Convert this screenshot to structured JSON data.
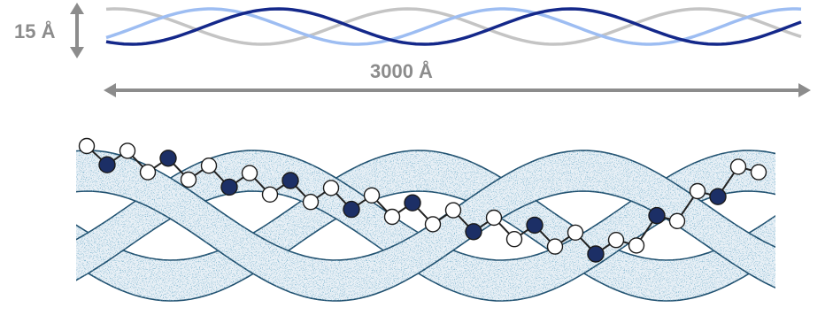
{
  "dimensions": {
    "diameter_label": "15 Å",
    "length_label": "3000 Å"
  },
  "colors": {
    "strand_dark": "#14288a",
    "strand_light": "#9dbdf2",
    "strand_grey": "#c4c4c4",
    "dimension_arrow": "#8c8c8c",
    "fiber_fill": "#e8f0f6",
    "fiber_stipple": "#2f6f9a",
    "fiber_outline": "#1f4f6e",
    "atom_dark": "#1c2f66",
    "atom_light": "#ffffff"
  },
  "illustration": {
    "subject": "collagen-triple-helix",
    "strand_count": 3
  }
}
